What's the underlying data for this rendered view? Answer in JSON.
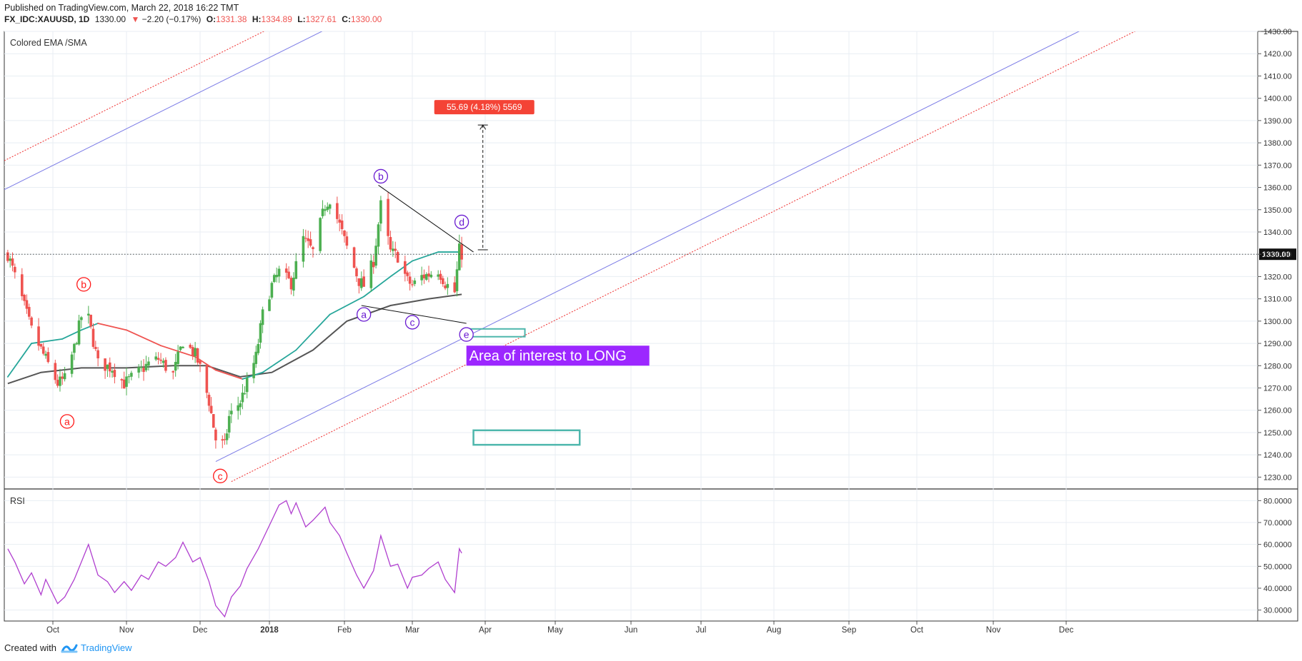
{
  "header": {
    "published": "Published on TradingView.com, March 22, 2018 16:22 TMT",
    "symbol": "FX_IDC:XAUUSD, 1D",
    "last": "1330.00",
    "change_arrow": "▼",
    "change": "−2.20 (−0.17%)",
    "open_label": "O:",
    "open": "1331.38",
    "high_label": "H:",
    "high": "1334.89",
    "low_label": "L:",
    "low": "1327.61",
    "close_label": "C:",
    "close": "1330.00"
  },
  "footer": {
    "created_with": "Created with",
    "brand": "TradingView",
    "brand_icon": "tradingview-logo-icon"
  },
  "colors": {
    "up": "#4caf50",
    "down": "#ef5350",
    "ema_fast": "#26a69a",
    "sma_red": "#ef5350",
    "sma_grey": "#555555",
    "channel_blue": "#7b7be6",
    "channel_red": "#ef3b3b",
    "rsi": "#b03fcf",
    "label_bg": "#9c27ff",
    "measure_bg": "#f44336",
    "box": "#4db6ac",
    "wave_red": "#ff1a1a",
    "wave_purple": "#6a1bd1"
  },
  "chart_data": [
    {
      "type": "candlestick",
      "title": "",
      "indicator_label": "Colored EMA /SMA",
      "ylim": [
        1225,
        1430
      ],
      "y_ticks": [
        "1230.00",
        "1240.00",
        "1250.00",
        "1260.00",
        "1270.00",
        "1280.00",
        "1290.00",
        "1300.00",
        "1310.00",
        "1320.00",
        "1330.00",
        "1340.00",
        "1350.00",
        "1360.00",
        "1370.00",
        "1380.00",
        "1390.00",
        "1400.00",
        "1410.00",
        "1420.00",
        "1430.00"
      ],
      "x_ticks": [
        "Oct",
        "Nov",
        "Dec",
        "2018",
        "Feb",
        "Mar",
        "Apr",
        "May",
        "Jun",
        "Jul",
        "Aug",
        "Sep",
        "Oct",
        "Nov",
        "Dec"
      ],
      "last_price_label": "1330.00",
      "wave_labels_red": [
        "a",
        "b",
        "c"
      ],
      "wave_labels_purple": [
        "a",
        "b",
        "c",
        "d",
        "e"
      ],
      "annotation_text": "Area of interest to LONG",
      "measure_label": "55.69 (4.18%) 5569",
      "close_path": [
        [
          "2017-09-12",
          1330
        ],
        [
          "2017-09-18",
          1310
        ],
        [
          "2017-09-22",
          1296
        ],
        [
          "2017-09-27",
          1285
        ],
        [
          "2017-10-03",
          1272
        ],
        [
          "2017-10-06",
          1274
        ],
        [
          "2017-10-10",
          1288
        ],
        [
          "2017-10-13",
          1302
        ],
        [
          "2017-10-16",
          1301
        ],
        [
          "2017-10-20",
          1281
        ],
        [
          "2017-10-26",
          1279
        ],
        [
          "2017-10-31",
          1272
        ],
        [
          "2017-11-06",
          1277
        ],
        [
          "2017-11-10",
          1281
        ],
        [
          "2017-11-14",
          1283
        ],
        [
          "2017-11-20",
          1276
        ],
        [
          "2017-11-24",
          1291
        ],
        [
          "2017-11-29",
          1285
        ],
        [
          "2017-12-01",
          1279
        ],
        [
          "2017-12-05",
          1264
        ],
        [
          "2017-12-08",
          1247
        ],
        [
          "2017-12-12",
          1244
        ],
        [
          "2017-12-14",
          1257
        ],
        [
          "2017-12-19",
          1264
        ],
        [
          "2017-12-22",
          1272
        ],
        [
          "2017-12-26",
          1284
        ],
        [
          "2017-12-29",
          1303
        ],
        [
          "2018-01-02",
          1316
        ],
        [
          "2018-01-05",
          1322
        ],
        [
          "2018-01-10",
          1317
        ],
        [
          "2018-01-15",
          1337
        ],
        [
          "2018-01-19",
          1331
        ],
        [
          "2018-01-24",
          1352
        ],
        [
          "2018-01-26",
          1355
        ],
        [
          "2018-01-30",
          1343
        ],
        [
          "2018-02-02",
          1333
        ],
        [
          "2018-02-07",
          1318
        ],
        [
          "2018-02-09",
          1316
        ],
        [
          "2018-02-13",
          1327
        ],
        [
          "2018-02-16",
          1352
        ],
        [
          "2018-02-20",
          1331
        ],
        [
          "2018-02-23",
          1329
        ],
        [
          "2018-02-27",
          1318
        ],
        [
          "2018-03-01",
          1316
        ],
        [
          "2018-03-05",
          1320
        ],
        [
          "2018-03-08",
          1321
        ],
        [
          "2018-03-12",
          1323
        ],
        [
          "2018-03-15",
          1317
        ],
        [
          "2018-03-19",
          1313
        ],
        [
          "2018-03-21",
          1332
        ],
        [
          "2018-03-22",
          1330
        ]
      ],
      "ema_fast": [
        [
          "2017-09-12",
          1275
        ],
        [
          "2017-09-22",
          1290
        ],
        [
          "2017-10-05",
          1292
        ],
        [
          "2017-10-13",
          1296
        ],
        [
          "2017-10-20",
          1299
        ],
        [
          "2017-11-01",
          1296
        ],
        [
          "2017-11-15",
          1289
        ],
        [
          "2017-11-29",
          1284
        ],
        [
          "2017-12-08",
          1278
        ],
        [
          "2017-12-20",
          1274
        ],
        [
          "2017-12-29",
          1277
        ],
        [
          "2018-01-12",
          1287
        ],
        [
          "2018-01-26",
          1303
        ],
        [
          "2018-02-09",
          1311
        ],
        [
          "2018-02-20",
          1320
        ],
        [
          "2018-03-01",
          1327
        ],
        [
          "2018-03-12",
          1331
        ],
        [
          "2018-03-22",
          1331
        ]
      ],
      "sma_grey": [
        [
          "2017-09-12",
          1272
        ],
        [
          "2017-09-26",
          1277
        ],
        [
          "2017-10-13",
          1279
        ],
        [
          "2017-11-01",
          1279
        ],
        [
          "2017-11-20",
          1280
        ],
        [
          "2017-12-04",
          1280
        ],
        [
          "2017-12-19",
          1275
        ],
        [
          "2018-01-02",
          1277
        ],
        [
          "2018-01-19",
          1287
        ],
        [
          "2018-02-02",
          1300
        ],
        [
          "2018-02-20",
          1307
        ],
        [
          "2018-03-08",
          1310
        ],
        [
          "2018-03-22",
          1312
        ]
      ],
      "rsi": {
        "label": "RSI",
        "ylim": [
          25,
          85
        ],
        "y_ticks": [
          "30.0000",
          "40.0000",
          "50.0000",
          "60.0000",
          "70.0000",
          "80.0000"
        ],
        "values": [
          [
            "2017-09-12",
            58
          ],
          [
            "2017-09-15",
            52
          ],
          [
            "2017-09-19",
            42
          ],
          [
            "2017-09-22",
            47
          ],
          [
            "2017-09-26",
            37
          ],
          [
            "2017-09-28",
            44
          ],
          [
            "2017-10-03",
            33
          ],
          [
            "2017-10-06",
            36
          ],
          [
            "2017-10-10",
            44
          ],
          [
            "2017-10-13",
            52
          ],
          [
            "2017-10-16",
            60
          ],
          [
            "2017-10-20",
            46
          ],
          [
            "2017-10-24",
            43
          ],
          [
            "2017-10-27",
            38
          ],
          [
            "2017-10-31",
            43
          ],
          [
            "2017-11-03",
            39
          ],
          [
            "2017-11-07",
            46
          ],
          [
            "2017-11-10",
            44
          ],
          [
            "2017-11-14",
            52
          ],
          [
            "2017-11-17",
            50
          ],
          [
            "2017-11-21",
            54
          ],
          [
            "2017-11-24",
            61
          ],
          [
            "2017-11-28",
            52
          ],
          [
            "2017-12-01",
            54
          ],
          [
            "2017-12-05",
            43
          ],
          [
            "2017-12-08",
            32
          ],
          [
            "2017-12-12",
            27
          ],
          [
            "2017-12-15",
            36
          ],
          [
            "2017-12-19",
            41
          ],
          [
            "2017-12-22",
            49
          ],
          [
            "2017-12-27",
            58
          ],
          [
            "2018-01-02",
            71
          ],
          [
            "2018-01-05",
            78
          ],
          [
            "2018-01-08",
            80
          ],
          [
            "2018-01-10",
            74
          ],
          [
            "2018-01-12",
            79
          ],
          [
            "2018-01-16",
            68
          ],
          [
            "2018-01-19",
            71
          ],
          [
            "2018-01-24",
            77
          ],
          [
            "2018-01-26",
            70
          ],
          [
            "2018-01-30",
            64
          ],
          [
            "2018-02-02",
            56
          ],
          [
            "2018-02-06",
            46
          ],
          [
            "2018-02-09",
            40
          ],
          [
            "2018-02-13",
            48
          ],
          [
            "2018-02-16",
            64
          ],
          [
            "2018-02-20",
            50
          ],
          [
            "2018-02-23",
            51
          ],
          [
            "2018-02-27",
            40
          ],
          [
            "2018-03-01",
            45
          ],
          [
            "2018-03-05",
            46
          ],
          [
            "2018-03-08",
            49
          ],
          [
            "2018-03-12",
            52
          ],
          [
            "2018-03-15",
            44
          ],
          [
            "2018-03-19",
            38
          ],
          [
            "2018-03-21",
            58
          ],
          [
            "2018-03-22",
            56
          ]
        ]
      }
    }
  ]
}
